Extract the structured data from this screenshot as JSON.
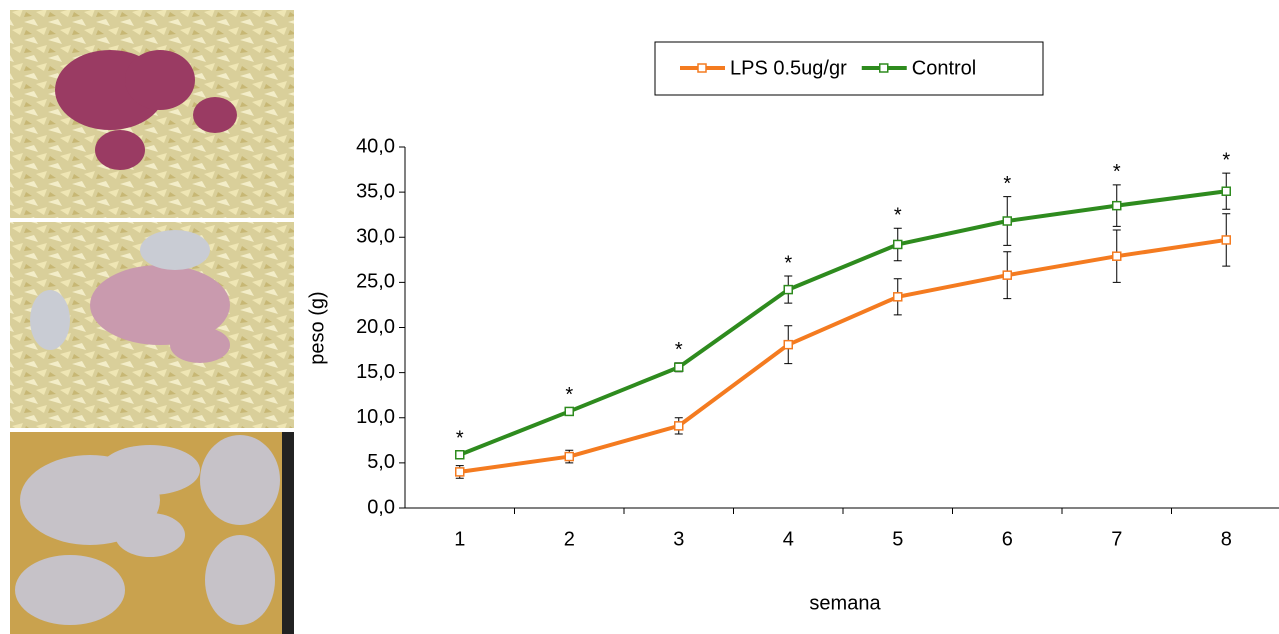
{
  "chart_data": {
    "type": "line",
    "legend": "top",
    "x_label": "semana",
    "y_label": "peso (g)",
    "categories": [
      "1",
      "2",
      "3",
      "4",
      "5",
      "6",
      "7",
      "8"
    ],
    "ylim": [
      0,
      40
    ],
    "yticks": [
      {
        "value": 0,
        "label": "0,0"
      },
      {
        "value": 5,
        "label": "5,0"
      },
      {
        "value": 10,
        "label": "10,0"
      },
      {
        "value": 15,
        "label": "15,0"
      },
      {
        "value": 20,
        "label": "20,0"
      },
      {
        "value": 25,
        "label": "25,0"
      },
      {
        "value": 30,
        "label": "30,0"
      },
      {
        "value": 35,
        "label": "35,0"
      },
      {
        "value": 40,
        "label": "40,0"
      }
    ],
    "series": [
      {
        "name": "LPS 0.5ug/gr",
        "color": "#f47b20",
        "values": [
          4.0,
          5.7,
          9.1,
          18.1,
          23.4,
          25.8,
          27.9,
          29.7
        ],
        "errors": [
          0.7,
          0.7,
          0.9,
          2.1,
          2.0,
          2.6,
          2.9,
          2.9
        ]
      },
      {
        "name": "Control",
        "color": "#2e8b1e",
        "values": [
          5.9,
          10.7,
          15.6,
          24.2,
          29.2,
          31.8,
          33.5,
          35.1
        ],
        "errors": [
          0.4,
          0.4,
          0.5,
          1.5,
          1.8,
          2.7,
          2.3,
          2.0
        ]
      }
    ],
    "significance_labels": [
      "*",
      "*",
      "*",
      "*",
      "*",
      "*",
      "*",
      "*"
    ]
  }
}
